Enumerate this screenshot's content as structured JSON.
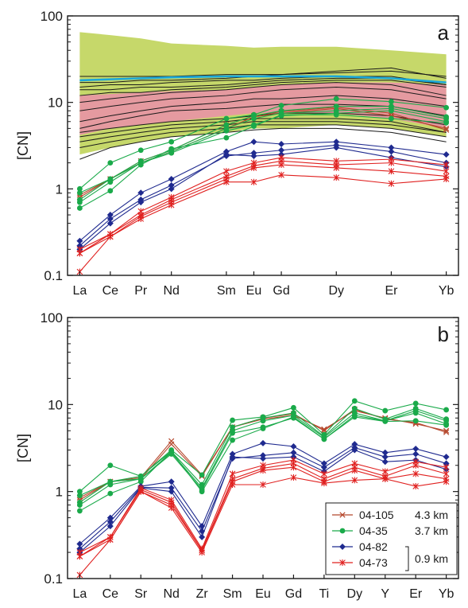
{
  "chart_data": [
    {
      "type": "line",
      "panel_label": "a",
      "ylabel": "[CN]",
      "yscale": "log",
      "ylim": [
        0.1,
        100
      ],
      "y_ticks": [
        "0.1",
        "1",
        "10",
        "100"
      ],
      "categories": [
        "La",
        "Ce",
        "Pr",
        "Nd",
        "Sm",
        "Eu",
        "Gd",
        "Dy",
        "Er",
        "Yb"
      ],
      "category_positions": [
        1,
        2,
        3,
        4,
        5.8,
        6.7,
        7.6,
        9.4,
        11.2,
        13
      ],
      "x_range": [
        0.6,
        13.4
      ],
      "colors": {
        "envelope_green": "#c6d86a",
        "envelope_pink": "#e59aa0",
        "reference_black": "#1a1a1a",
        "highlight_blue": "#1aa7d9"
      },
      "envelope_green": {
        "upper": [
          65,
          60,
          55,
          48,
          45,
          43,
          44,
          44,
          40,
          36
        ],
        "lower": [
          2.5,
          3.0,
          3.5,
          4.0,
          4.5,
          5.0,
          5.0,
          5.5,
          5.0,
          4.0
        ]
      },
      "envelope_pink": {
        "upper": [
          12,
          12.5,
          13,
          13.5,
          14,
          15,
          16,
          17,
          17,
          16
        ],
        "lower": [
          4.2,
          5.0,
          5.5,
          6.0,
          7.0,
          7.5,
          7.5,
          7.5,
          6.5,
          5.0
        ]
      },
      "reference_lines": [
        [
          20,
          20,
          20,
          20,
          21,
          21,
          21,
          22,
          23,
          20
        ],
        [
          17,
          17,
          18,
          18,
          19,
          20,
          21,
          23,
          25,
          19
        ],
        [
          15,
          16,
          16,
          17,
          18,
          18,
          19,
          20,
          20,
          16
        ],
        [
          14,
          14,
          15,
          15,
          16,
          17,
          18,
          19,
          19,
          16
        ],
        [
          12,
          13,
          13,
          14,
          15,
          16,
          17,
          18,
          18,
          15
        ],
        [
          10,
          11,
          12,
          13,
          14,
          15,
          16,
          17,
          16,
          12
        ],
        [
          8,
          9,
          10,
          11,
          12,
          13,
          14,
          15,
          14,
          11
        ],
        [
          6,
          7,
          8,
          9,
          10,
          11,
          11,
          12,
          11,
          9
        ],
        [
          5,
          6,
          7,
          8,
          8.5,
          9,
          9.5,
          9.5,
          9,
          7
        ],
        [
          4.5,
          5,
          5.5,
          6,
          6.5,
          7,
          7.5,
          7.5,
          7,
          5.5
        ],
        [
          4,
          4.5,
          5,
          5.5,
          6,
          6.5,
          6.5,
          6.5,
          6,
          4.5
        ],
        [
          3.5,
          4,
          4.5,
          5,
          5.5,
          6,
          6,
          6,
          5.5,
          4.5
        ],
        [
          3,
          3.5,
          4,
          4.5,
          5,
          5.5,
          5.5,
          5.5,
          5,
          4
        ],
        [
          2.2,
          3,
          3.5,
          4,
          4.5,
          4.8,
          5,
          5,
          4.5,
          3.5
        ]
      ],
      "highlight_line": [
        18,
        18.5,
        19,
        19.5,
        20,
        20,
        20,
        20,
        19,
        17
      ],
      "series": [
        {
          "name": "04-105",
          "values": [
            0.85,
            1.3,
            2.0,
            2.7,
            5.0,
            6.8,
            7.5,
            8.5,
            7.0,
            5.0
          ]
        },
        {
          "name": "04-105",
          "values": [
            0.8,
            1.3,
            2.1,
            2.8,
            5.5,
            7.0,
            7.8,
            8.8,
            7.5,
            4.8
          ]
        },
        {
          "name": "04-35",
          "values": [
            1.0,
            2.0,
            2.8,
            3.5,
            6.5,
            7.2,
            9.2,
            11.0,
            10.2,
            8.7
          ]
        },
        {
          "name": "04-35",
          "values": [
            0.9,
            1.3,
            2.1,
            2.8,
            5.5,
            7.0,
            8.0,
            9.0,
            9.0,
            6.8
          ]
        },
        {
          "name": "04-35",
          "values": [
            0.75,
            1.3,
            2.0,
            2.7,
            5.0,
            6.5,
            7.5,
            8.0,
            8.5,
            6.5
          ]
        },
        {
          "name": "04-35",
          "values": [
            0.7,
            1.2,
            2.0,
            2.6,
            4.7,
            5.5,
            7.0,
            7.5,
            8.0,
            6.0
          ]
        },
        {
          "name": "04-35",
          "values": [
            0.6,
            0.95,
            1.9,
            2.9,
            3.9,
            5.3,
            7.2,
            7.2,
            6.5,
            5.8
          ]
        },
        {
          "name": "04-82",
          "values": [
            0.25,
            0.5,
            0.9,
            1.3,
            2.7,
            3.5,
            3.3,
            3.5,
            3.0,
            2.5
          ]
        },
        {
          "name": "04-82",
          "values": [
            0.22,
            0.45,
            0.75,
            1.1,
            2.4,
            2.6,
            2.8,
            3.2,
            2.7,
            2.0
          ]
        },
        {
          "name": "04-82",
          "values": [
            0.2,
            0.4,
            0.7,
            1.0,
            2.5,
            2.4,
            2.5,
            3.0,
            2.3,
            1.8
          ]
        },
        {
          "name": "04-73",
          "values": [
            0.2,
            0.3,
            0.55,
            0.8,
            1.6,
            2.0,
            2.3,
            2.1,
            2.2,
            1.9
          ]
        },
        {
          "name": "04-73",
          "values": [
            0.18,
            0.3,
            0.5,
            0.75,
            1.4,
            1.85,
            2.1,
            1.9,
            2.0,
            1.6
          ]
        },
        {
          "name": "04-73",
          "values": [
            0.18,
            0.28,
            0.48,
            0.7,
            1.3,
            1.75,
            1.9,
            1.75,
            1.6,
            1.4
          ]
        },
        {
          "name": "04-73",
          "values": [
            0.11,
            0.28,
            0.45,
            0.65,
            1.2,
            1.2,
            1.45,
            1.35,
            1.15,
            1.3
          ]
        }
      ]
    },
    {
      "type": "line",
      "panel_label": "b",
      "ylabel": "[CN]",
      "yscale": "log",
      "ylim": [
        0.1,
        100
      ],
      "y_ticks": [
        "0.1",
        "1",
        "10",
        "100"
      ],
      "categories": [
        "La",
        "Ce",
        "Sr",
        "Nd",
        "Zr",
        "Sm",
        "Eu",
        "Gd",
        "Ti",
        "Dy",
        "Y",
        "Er",
        "Yb"
      ],
      "category_positions": [
        1,
        2,
        3,
        4,
        5,
        6,
        7,
        8,
        9,
        10,
        11,
        12,
        13
      ],
      "x_range": [
        0.6,
        13.4
      ],
      "legend": {
        "placement": "bottom-right",
        "entries": [
          {
            "label": "04-105",
            "depth": "4.3 km",
            "marker": "x",
            "color": "#b5472c"
          },
          {
            "label": "04-35",
            "depth": "3.7 km",
            "marker": "circle",
            "color": "#1aaa4a"
          },
          {
            "label": "04-82",
            "depth": "",
            "marker": "diamond",
            "color": "#1f2a8f"
          },
          {
            "label": "04-73",
            "depth": "",
            "marker": "asterisk",
            "color": "#e0201f"
          }
        ],
        "bracket_label": "0.9 km"
      },
      "series": [
        {
          "name": "04-105",
          "values": [
            0.85,
            1.3,
            1.45,
            3.8,
            1.55,
            5.5,
            6.8,
            7.5,
            5.2,
            8.5,
            7.0,
            6.0,
            5.0
          ]
        },
        {
          "name": "04-105",
          "values": [
            0.8,
            1.3,
            1.4,
            3.5,
            1.5,
            5.5,
            7.0,
            7.8,
            5.0,
            8.8,
            6.8,
            6.2,
            4.8
          ]
        },
        {
          "name": "04-35",
          "values": [
            1.0,
            2.0,
            1.5,
            3.0,
            1.55,
            6.6,
            7.2,
            9.2,
            4.5,
            11.0,
            8.5,
            10.3,
            8.7
          ]
        },
        {
          "name": "04-35",
          "values": [
            0.9,
            1.3,
            1.5,
            2.9,
            1.2,
            5.5,
            7.0,
            8.0,
            4.3,
            9.0,
            6.8,
            9.0,
            6.8
          ]
        },
        {
          "name": "04-35",
          "values": [
            0.75,
            1.3,
            1.4,
            2.8,
            1.1,
            5.0,
            6.5,
            7.5,
            4.2,
            8.0,
            6.5,
            8.5,
            6.5
          ]
        },
        {
          "name": "04-35",
          "values": [
            0.7,
            1.2,
            1.4,
            2.7,
            1.05,
            4.7,
            5.5,
            7.0,
            4.0,
            7.5,
            6.5,
            8.0,
            6.0
          ]
        },
        {
          "name": "04-35",
          "values": [
            0.6,
            0.95,
            1.3,
            2.9,
            1.0,
            3.9,
            5.3,
            7.2,
            4.0,
            7.2,
            6.4,
            6.5,
            5.8
          ]
        },
        {
          "name": "04-82",
          "values": [
            0.25,
            0.5,
            1.15,
            1.3,
            0.4,
            2.7,
            3.6,
            3.3,
            2.1,
            3.5,
            2.8,
            3.1,
            2.5
          ]
        },
        {
          "name": "04-82",
          "values": [
            0.22,
            0.45,
            1.12,
            1.1,
            0.35,
            2.4,
            2.6,
            2.8,
            1.9,
            3.2,
            2.5,
            2.7,
            2.1
          ]
        },
        {
          "name": "04-82",
          "values": [
            0.2,
            0.4,
            1.1,
            1.0,
            0.3,
            2.5,
            2.4,
            2.5,
            1.7,
            3.0,
            2.2,
            2.3,
            1.8
          ]
        },
        {
          "name": "04-73",
          "values": [
            0.2,
            0.3,
            1.1,
            0.8,
            0.22,
            1.6,
            2.0,
            2.3,
            1.6,
            2.1,
            1.7,
            2.2,
            1.9
          ]
        },
        {
          "name": "04-73",
          "values": [
            0.18,
            0.3,
            1.05,
            0.75,
            0.21,
            1.4,
            1.85,
            2.1,
            1.4,
            1.9,
            1.5,
            2.0,
            1.6
          ]
        },
        {
          "name": "04-73",
          "values": [
            0.18,
            0.28,
            1.0,
            0.7,
            0.21,
            1.3,
            1.75,
            1.9,
            1.3,
            1.75,
            1.4,
            1.6,
            1.4
          ]
        },
        {
          "name": "04-73",
          "values": [
            0.11,
            0.28,
            1.0,
            0.65,
            0.2,
            1.2,
            1.2,
            1.45,
            1.25,
            1.35,
            1.4,
            1.15,
            1.3
          ]
        }
      ]
    }
  ],
  "series_styles": {
    "04-105": {
      "color": "#b5472c",
      "marker": "x"
    },
    "04-35": {
      "color": "#1aaa4a",
      "marker": "circle"
    },
    "04-82": {
      "color": "#1f2a8f",
      "marker": "diamond"
    },
    "04-73": {
      "color": "#e0201f",
      "marker": "asterisk"
    }
  }
}
